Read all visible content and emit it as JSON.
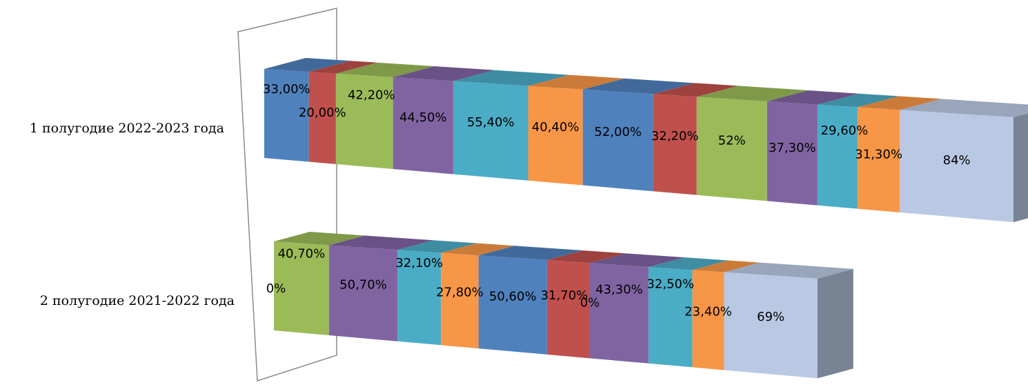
{
  "chart_data": {
    "type": "bar",
    "orientation": "horizontal-stacked-3d",
    "categories": [
      "1 полугодие 2022-2023 года",
      "2 полугодие 2021-2022 года"
    ],
    "series": [
      {
        "color": "#4F81BD",
        "values": [
          33.0,
          0
        ],
        "labels": [
          "33,00%",
          ""
        ]
      },
      {
        "color": "#C0504D",
        "values": [
          20.0,
          0
        ],
        "labels": [
          "20,00%",
          ""
        ]
      },
      {
        "color": "#9BBB59",
        "values": [
          42.2,
          40.7
        ],
        "labels": [
          "42,20%",
          "40,70%"
        ]
      },
      {
        "color": "#8064A2",
        "values": [
          44.5,
          50.7
        ],
        "labels": [
          "44,50%",
          "50,70%"
        ]
      },
      {
        "color": "#4BACC6",
        "values": [
          55.4,
          32.1
        ],
        "labels": [
          "55,40%",
          "32,10%"
        ]
      },
      {
        "color": "#F79646",
        "values": [
          40.4,
          27.8
        ],
        "labels": [
          "40,40%",
          "27,80%"
        ]
      },
      {
        "color": "#4F81BD",
        "values": [
          52.0,
          50.6
        ],
        "labels": [
          "52,00%",
          "50,60%"
        ]
      },
      {
        "color": "#C0504D",
        "values": [
          32.2,
          31.7
        ],
        "labels": [
          "32,20%",
          "31,70%"
        ]
      },
      {
        "color": "#9BBB59",
        "values": [
          52,
          0
        ],
        "labels": [
          "52%",
          "0%"
        ]
      },
      {
        "color": "#8064A2",
        "values": [
          37.3,
          43.3
        ],
        "labels": [
          "37,30%",
          "43,30%"
        ]
      },
      {
        "color": "#4BACC6",
        "values": [
          29.6,
          32.5
        ],
        "labels": [
          "29,60%",
          "32,50%"
        ]
      },
      {
        "color": "#F79646",
        "values": [
          31.3,
          23.4
        ],
        "labels": [
          "31,30%",
          "23,40%"
        ]
      },
      {
        "color": "#B9C9E4",
        "values": [
          84,
          69
        ],
        "labels": [
          "84%",
          "69%"
        ]
      }
    ],
    "zero_label_row2": "0%",
    "xlabel": "",
    "ylabel": "",
    "legend": "none",
    "grid": false
  }
}
